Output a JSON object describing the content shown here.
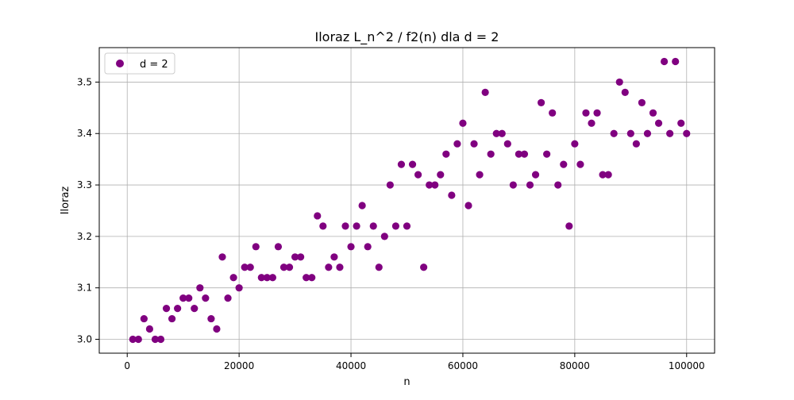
{
  "chart_data": {
    "type": "scatter",
    "title": "Iloraz L_n^2 / f2(n) dla d = 2",
    "xlabel": "n",
    "ylabel": "Iloraz",
    "xlim": [
      -5000,
      105000
    ],
    "ylim": [
      2.973,
      3.567
    ],
    "xticks": [
      0,
      20000,
      40000,
      60000,
      80000,
      100000
    ],
    "xtick_labels": [
      "0",
      "20000",
      "40000",
      "60000",
      "80000",
      "100000"
    ],
    "yticks": [
      3.0,
      3.1,
      3.2,
      3.3,
      3.4,
      3.5
    ],
    "ytick_labels": [
      "3.0",
      "3.1",
      "3.2",
      "3.3",
      "3.4",
      "3.5"
    ],
    "grid": true,
    "legend_position": "top-left",
    "series": [
      {
        "name": "d = 2",
        "color": "#800080",
        "x": [
          1000,
          2000,
          3000,
          4000,
          5000,
          6000,
          7000,
          8000,
          9000,
          10000,
          11000,
          12000,
          13000,
          14000,
          15000,
          16000,
          17000,
          18000,
          19000,
          20000,
          21000,
          22000,
          23000,
          24000,
          25000,
          26000,
          27000,
          28000,
          29000,
          30000,
          31000,
          32000,
          33000,
          34000,
          35000,
          36000,
          37000,
          38000,
          39000,
          40000,
          41000,
          42000,
          43000,
          44000,
          45000,
          46000,
          47000,
          48000,
          49000,
          50000,
          51000,
          52000,
          53000,
          54000,
          55000,
          56000,
          57000,
          58000,
          59000,
          60000,
          61000,
          62000,
          63000,
          64000,
          65000,
          66000,
          67000,
          68000,
          69000,
          70000,
          71000,
          72000,
          73000,
          74000,
          75000,
          76000,
          77000,
          78000,
          79000,
          80000,
          81000,
          82000,
          83000,
          84000,
          85000,
          86000,
          87000,
          88000,
          89000,
          90000,
          91000,
          92000,
          93000,
          94000,
          95000,
          96000,
          97000,
          98000,
          99000,
          100000
        ],
        "y": [
          3.0,
          3.0,
          3.04,
          3.02,
          3.0,
          3.0,
          3.06,
          3.04,
          3.06,
          3.08,
          3.08,
          3.06,
          3.1,
          3.08,
          3.04,
          3.02,
          3.16,
          3.08,
          3.12,
          3.1,
          3.14,
          3.14,
          3.18,
          3.12,
          3.12,
          3.12,
          3.18,
          3.14,
          3.14,
          3.16,
          3.16,
          3.12,
          3.12,
          3.24,
          3.22,
          3.14,
          3.16,
          3.14,
          3.22,
          3.18,
          3.22,
          3.26,
          3.18,
          3.22,
          3.14,
          3.2,
          3.3,
          3.22,
          3.34,
          3.22,
          3.34,
          3.32,
          3.14,
          3.3,
          3.3,
          3.32,
          3.36,
          3.28,
          3.38,
          3.42,
          3.26,
          3.38,
          3.32,
          3.48,
          3.36,
          3.4,
          3.4,
          3.38,
          3.3,
          3.36,
          3.36,
          3.3,
          3.32,
          3.46,
          3.36,
          3.44,
          3.3,
          3.34,
          3.22,
          3.38,
          3.34,
          3.44,
          3.42,
          3.44,
          3.32,
          3.32,
          3.4,
          3.5,
          3.48,
          3.4,
          3.38,
          3.46,
          3.4,
          3.44,
          3.42,
          3.54,
          3.4,
          3.54,
          3.42,
          3.4
        ]
      }
    ]
  }
}
